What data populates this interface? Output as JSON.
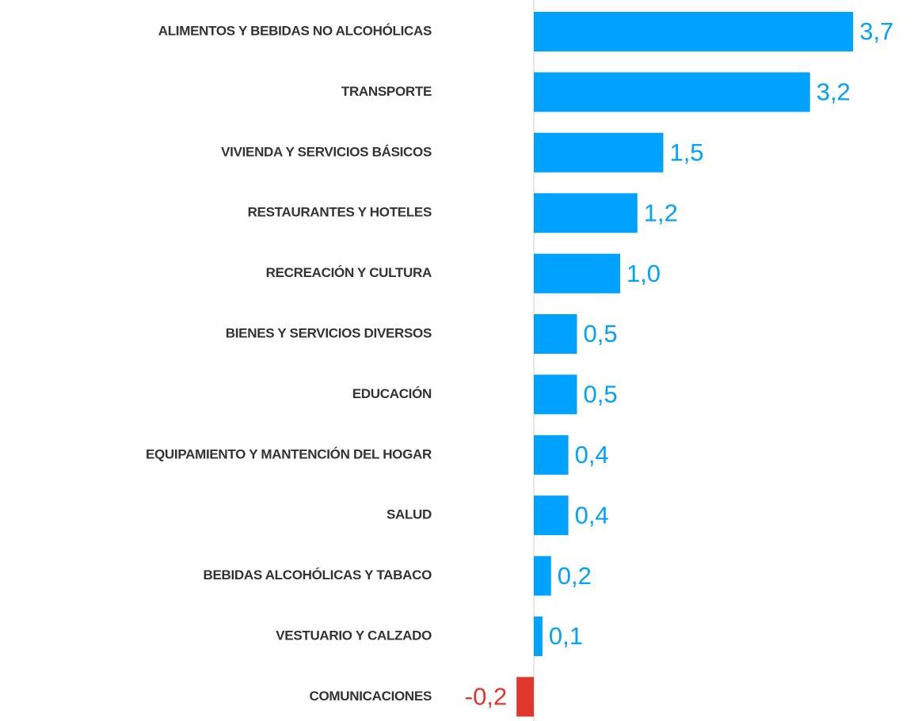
{
  "chart_data": {
    "type": "barh",
    "categories": [
      "ALIMENTOS Y BEBIDAS NO ALCOHÓLICAS",
      "TRANSPORTE",
      "VIVIENDA Y SERVICIOS BÁSICOS",
      "RESTAURANTES Y HOTELES",
      "RECREACIÓN Y CULTURA",
      "BIENES Y SERVICIOS DIVERSOS",
      "EDUCACIÓN",
      "EQUIPAMIENTO Y MANTENCIÓN DEL HOGAR",
      "SALUD",
      "BEBIDAS ALCOHÓLICAS Y TABACO",
      "VESTUARIO Y CALZADO",
      "COMUNICACIONES"
    ],
    "values": [
      3.7,
      3.2,
      1.5,
      1.2,
      1.0,
      0.5,
      0.5,
      0.4,
      0.4,
      0.2,
      0.1,
      -0.2
    ],
    "value_labels": [
      "3,7",
      "3,2",
      "1,5",
      "1,2",
      "1,0",
      "0,5",
      "0,5",
      "0,4",
      "0,4",
      "0,2",
      "0,1",
      "-0,2"
    ],
    "color": "#00a2ff",
    "negative_color": "#e0362c",
    "xlim": [
      -0.5,
      3.9
    ]
  }
}
